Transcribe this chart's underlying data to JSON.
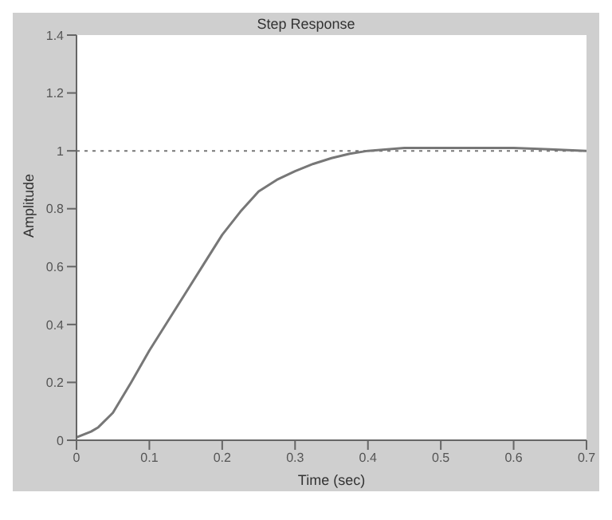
{
  "chart_data": {
    "type": "line",
    "title": "Step Response",
    "xlabel": "Time (sec)",
    "ylabel": "Amplitude",
    "x": [
      0,
      0.02,
      0.03,
      0.05,
      0.075,
      0.1,
      0.125,
      0.15,
      0.175,
      0.2,
      0.225,
      0.25,
      0.275,
      0.3,
      0.325,
      0.35,
      0.375,
      0.4,
      0.45,
      0.5,
      0.55,
      0.6,
      0.65,
      0.7
    ],
    "series": [
      {
        "color": "#777777",
        "values": [
          0.01,
          0.03,
          0.045,
          0.095,
          0.2,
          0.31,
          0.41,
          0.51,
          0.61,
          0.71,
          0.79,
          0.86,
          0.9,
          0.93,
          0.955,
          0.975,
          0.99,
          1.0,
          1.01,
          1.01,
          1.01,
          1.01,
          1.005,
          1.0
        ]
      }
    ],
    "xlim": [
      0,
      0.7
    ],
    "xticks": [
      0,
      0.1,
      0.2,
      0.3,
      0.4,
      0.5,
      0.6,
      0.7
    ],
    "ylim": [
      0,
      1.4
    ],
    "yticks": [
      0,
      0.2,
      0.4,
      0.6,
      0.8,
      1,
      1.2,
      1.4
    ],
    "ref_lines": [
      {
        "axis": "y",
        "value": 1,
        "color": "#777777",
        "line_style": "dotted"
      }
    ],
    "legend": false,
    "marker": "none",
    "line_style": "solid"
  }
}
